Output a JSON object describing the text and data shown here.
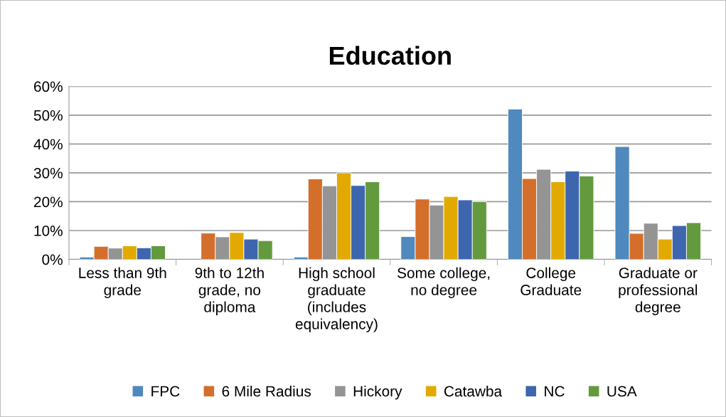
{
  "chart_data": {
    "type": "bar",
    "title": "Education",
    "categories": [
      "Less than 9th grade",
      "9th to 12th grade, no diploma",
      "High school graduate (includes equivalency)",
      "Some college, no degree",
      "College Graduate",
      "Graduate or professional degree"
    ],
    "series": [
      {
        "name": "FPC",
        "color": "#4f89bd",
        "values": [
          0.8,
          null,
          0.8,
          7.9,
          52.1,
          39.1
        ]
      },
      {
        "name": "6 Mile Radius",
        "color": "#d46e2b",
        "values": [
          4.5,
          9.1,
          27.9,
          20.9,
          28.0,
          9.0
        ]
      },
      {
        "name": "Hickory",
        "color": "#949494",
        "values": [
          3.9,
          7.8,
          25.5,
          18.8,
          31.2,
          12.5
        ]
      },
      {
        "name": "Catawba",
        "color": "#e2aa00",
        "values": [
          4.7,
          9.3,
          30.0,
          21.8,
          26.9,
          7.0
        ]
      },
      {
        "name": "NC",
        "color": "#3d66ae",
        "values": [
          4.0,
          7.0,
          25.6,
          20.6,
          30.6,
          11.7
        ]
      },
      {
        "name": "USA",
        "color": "#639a3e",
        "values": [
          4.7,
          6.5,
          26.9,
          20.0,
          28.9,
          12.7
        ]
      }
    ],
    "ylim": [
      0,
      60
    ],
    "yticks": [
      {
        "value": 0,
        "label": "0%"
      },
      {
        "value": 10,
        "label": "10%"
      },
      {
        "value": 20,
        "label": "20%"
      },
      {
        "value": 30,
        "label": "30%"
      },
      {
        "value": 40,
        "label": "40%"
      },
      {
        "value": 50,
        "label": "50%"
      },
      {
        "value": 60,
        "label": "60%"
      }
    ],
    "grid": "y",
    "legend": "bottom"
  }
}
